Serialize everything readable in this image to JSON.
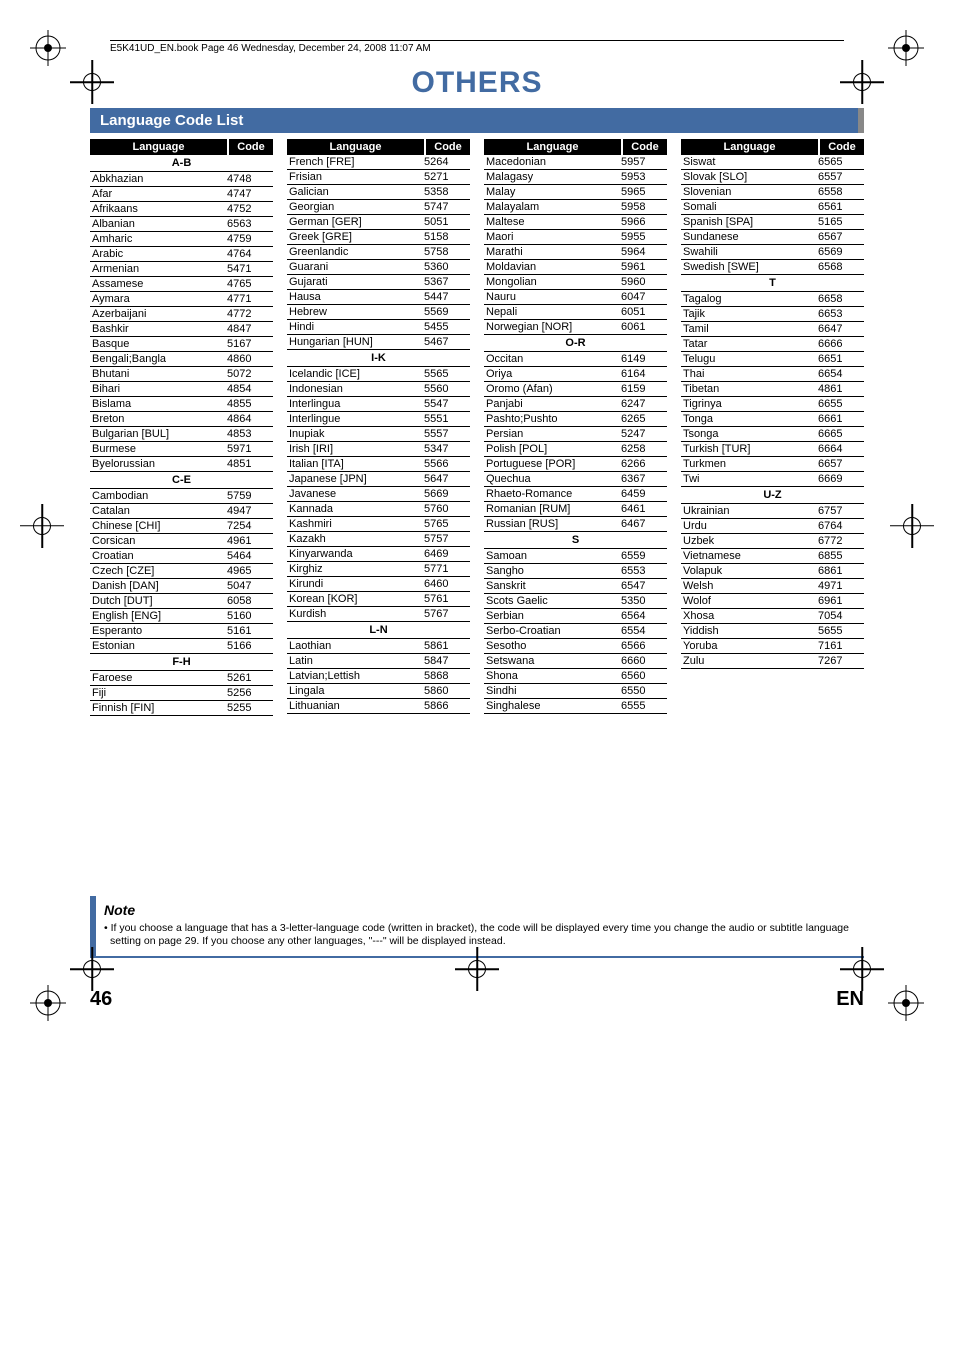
{
  "headerLine": "E5K41UD_EN.book  Page 46  Wednesday, December 24, 2008  11:07 AM",
  "title": "OTHERS",
  "sectionTitle": "Language Code List",
  "theadLang": "Language",
  "theadCode": "Code",
  "columns": [
    [
      {
        "type": "sect",
        "label": "A-B"
      },
      {
        "type": "row",
        "lang": "Abkhazian",
        "code": "4748"
      },
      {
        "type": "row",
        "lang": "Afar",
        "code": "4747"
      },
      {
        "type": "row",
        "lang": "Afrikaans",
        "code": "4752"
      },
      {
        "type": "row",
        "lang": "Albanian",
        "code": "6563"
      },
      {
        "type": "row",
        "lang": "Amharic",
        "code": "4759"
      },
      {
        "type": "row",
        "lang": "Arabic",
        "code": "4764"
      },
      {
        "type": "row",
        "lang": "Armenian",
        "code": "5471"
      },
      {
        "type": "row",
        "lang": "Assamese",
        "code": "4765"
      },
      {
        "type": "row",
        "lang": "Aymara",
        "code": "4771"
      },
      {
        "type": "row",
        "lang": "Azerbaijani",
        "code": "4772"
      },
      {
        "type": "row",
        "lang": "Bashkir",
        "code": "4847"
      },
      {
        "type": "row",
        "lang": "Basque",
        "code": "5167"
      },
      {
        "type": "row",
        "lang": "Bengali;Bangla",
        "code": "4860"
      },
      {
        "type": "row",
        "lang": "Bhutani",
        "code": "5072"
      },
      {
        "type": "row",
        "lang": "Bihari",
        "code": "4854"
      },
      {
        "type": "row",
        "lang": "Bislama",
        "code": "4855"
      },
      {
        "type": "row",
        "lang": "Breton",
        "code": "4864"
      },
      {
        "type": "row",
        "lang": "Bulgarian [BUL]",
        "code": "4853"
      },
      {
        "type": "row",
        "lang": "Burmese",
        "code": "5971"
      },
      {
        "type": "row",
        "lang": "Byelorussian",
        "code": "4851"
      },
      {
        "type": "sect",
        "label": "C-E"
      },
      {
        "type": "row",
        "lang": "Cambodian",
        "code": "5759"
      },
      {
        "type": "row",
        "lang": "Catalan",
        "code": "4947"
      },
      {
        "type": "row",
        "lang": "Chinese [CHI]",
        "code": "7254"
      },
      {
        "type": "row",
        "lang": "Corsican",
        "code": "4961"
      },
      {
        "type": "row",
        "lang": "Croatian",
        "code": "5464"
      },
      {
        "type": "row",
        "lang": "Czech [CZE]",
        "code": "4965"
      },
      {
        "type": "row",
        "lang": "Danish [DAN]",
        "code": "5047"
      },
      {
        "type": "row",
        "lang": "Dutch [DUT]",
        "code": "6058"
      },
      {
        "type": "row",
        "lang": "English [ENG]",
        "code": "5160"
      },
      {
        "type": "row",
        "lang": "Esperanto",
        "code": "5161"
      },
      {
        "type": "row",
        "lang": "Estonian",
        "code": "5166"
      },
      {
        "type": "sect",
        "label": "F-H"
      },
      {
        "type": "row",
        "lang": "Faroese",
        "code": "5261"
      },
      {
        "type": "row",
        "lang": "Fiji",
        "code": "5256"
      },
      {
        "type": "row",
        "lang": "Finnish [FIN]",
        "code": "5255"
      }
    ],
    [
      {
        "type": "row",
        "lang": "French [FRE]",
        "code": "5264"
      },
      {
        "type": "row",
        "lang": "Frisian",
        "code": "5271"
      },
      {
        "type": "row",
        "lang": "Galician",
        "code": "5358"
      },
      {
        "type": "row",
        "lang": "Georgian",
        "code": "5747"
      },
      {
        "type": "row",
        "lang": "German [GER]",
        "code": "5051"
      },
      {
        "type": "row",
        "lang": "Greek [GRE]",
        "code": "5158"
      },
      {
        "type": "row",
        "lang": "Greenlandic",
        "code": "5758"
      },
      {
        "type": "row",
        "lang": "Guarani",
        "code": "5360"
      },
      {
        "type": "row",
        "lang": "Gujarati",
        "code": "5367"
      },
      {
        "type": "row",
        "lang": "Hausa",
        "code": "5447"
      },
      {
        "type": "row",
        "lang": "Hebrew",
        "code": "5569"
      },
      {
        "type": "row",
        "lang": "Hindi",
        "code": "5455"
      },
      {
        "type": "row",
        "lang": "Hungarian [HUN]",
        "code": "5467"
      },
      {
        "type": "sect",
        "label": "I-K"
      },
      {
        "type": "row",
        "lang": "Icelandic [ICE]",
        "code": "5565"
      },
      {
        "type": "row",
        "lang": "Indonesian",
        "code": "5560"
      },
      {
        "type": "row",
        "lang": "Interlingua",
        "code": "5547"
      },
      {
        "type": "row",
        "lang": "Interlingue",
        "code": "5551"
      },
      {
        "type": "row",
        "lang": "Inupiak",
        "code": "5557"
      },
      {
        "type": "row",
        "lang": "Irish [IRI]",
        "code": "5347"
      },
      {
        "type": "row",
        "lang": "Italian [ITA]",
        "code": "5566"
      },
      {
        "type": "row",
        "lang": "Japanese [JPN]",
        "code": "5647"
      },
      {
        "type": "row",
        "lang": "Javanese",
        "code": "5669"
      },
      {
        "type": "row",
        "lang": "Kannada",
        "code": "5760"
      },
      {
        "type": "row",
        "lang": "Kashmiri",
        "code": "5765"
      },
      {
        "type": "row",
        "lang": "Kazakh",
        "code": "5757"
      },
      {
        "type": "row",
        "lang": "Kinyarwanda",
        "code": "6469"
      },
      {
        "type": "row",
        "lang": "Kirghiz",
        "code": "5771"
      },
      {
        "type": "row",
        "lang": "Kirundi",
        "code": "6460"
      },
      {
        "type": "row",
        "lang": "Korean [KOR]",
        "code": "5761"
      },
      {
        "type": "row",
        "lang": "Kurdish",
        "code": "5767"
      },
      {
        "type": "sect",
        "label": "L-N"
      },
      {
        "type": "row",
        "lang": "Laothian",
        "code": "5861"
      },
      {
        "type": "row",
        "lang": "Latin",
        "code": "5847"
      },
      {
        "type": "row",
        "lang": "Latvian;Lettish",
        "code": "5868"
      },
      {
        "type": "row",
        "lang": "Lingala",
        "code": "5860"
      },
      {
        "type": "row",
        "lang": "Lithuanian",
        "code": "5866"
      }
    ],
    [
      {
        "type": "row",
        "lang": "Macedonian",
        "code": "5957"
      },
      {
        "type": "row",
        "lang": "Malagasy",
        "code": "5953"
      },
      {
        "type": "row",
        "lang": "Malay",
        "code": "5965"
      },
      {
        "type": "row",
        "lang": "Malayalam",
        "code": "5958"
      },
      {
        "type": "row",
        "lang": "Maltese",
        "code": "5966"
      },
      {
        "type": "row",
        "lang": "Maori",
        "code": "5955"
      },
      {
        "type": "row",
        "lang": "Marathi",
        "code": "5964"
      },
      {
        "type": "row",
        "lang": "Moldavian",
        "code": "5961"
      },
      {
        "type": "row",
        "lang": "Mongolian",
        "code": "5960"
      },
      {
        "type": "row",
        "lang": "Nauru",
        "code": "6047"
      },
      {
        "type": "row",
        "lang": "Nepali",
        "code": "6051"
      },
      {
        "type": "row",
        "lang": "Norwegian [NOR]",
        "code": "6061"
      },
      {
        "type": "sect",
        "label": "O-R"
      },
      {
        "type": "row",
        "lang": "Occitan",
        "code": "6149"
      },
      {
        "type": "row",
        "lang": "Oriya",
        "code": "6164"
      },
      {
        "type": "row",
        "lang": "Oromo (Afan)",
        "code": "6159"
      },
      {
        "type": "row",
        "lang": "Panjabi",
        "code": "6247"
      },
      {
        "type": "row",
        "lang": "Pashto;Pushto",
        "code": "6265"
      },
      {
        "type": "row",
        "lang": "Persian",
        "code": "5247"
      },
      {
        "type": "row",
        "lang": "Polish [POL]",
        "code": "6258"
      },
      {
        "type": "row",
        "lang": "Portuguese [POR]",
        "code": "6266"
      },
      {
        "type": "row",
        "lang": "Quechua",
        "code": "6367"
      },
      {
        "type": "row",
        "lang": "Rhaeto-Romance",
        "code": "6459"
      },
      {
        "type": "row",
        "lang": "Romanian [RUM]",
        "code": "6461"
      },
      {
        "type": "row",
        "lang": "Russian [RUS]",
        "code": "6467"
      },
      {
        "type": "sect",
        "label": "S"
      },
      {
        "type": "row",
        "lang": "Samoan",
        "code": "6559"
      },
      {
        "type": "row",
        "lang": "Sangho",
        "code": "6553"
      },
      {
        "type": "row",
        "lang": "Sanskrit",
        "code": "6547"
      },
      {
        "type": "row",
        "lang": "Scots Gaelic",
        "code": "5350"
      },
      {
        "type": "row",
        "lang": "Serbian",
        "code": "6564"
      },
      {
        "type": "row",
        "lang": "Serbo-Croatian",
        "code": "6554"
      },
      {
        "type": "row",
        "lang": "Sesotho",
        "code": "6566"
      },
      {
        "type": "row",
        "lang": "Setswana",
        "code": "6660"
      },
      {
        "type": "row",
        "lang": "Shona",
        "code": "6560"
      },
      {
        "type": "row",
        "lang": "Sindhi",
        "code": "6550"
      },
      {
        "type": "row",
        "lang": "Singhalese",
        "code": "6555"
      }
    ],
    [
      {
        "type": "row",
        "lang": "Siswat",
        "code": "6565"
      },
      {
        "type": "row",
        "lang": "Slovak [SLO]",
        "code": "6557"
      },
      {
        "type": "row",
        "lang": "Slovenian",
        "code": "6558"
      },
      {
        "type": "row",
        "lang": "Somali",
        "code": "6561"
      },
      {
        "type": "row",
        "lang": "Spanish [SPA]",
        "code": "5165"
      },
      {
        "type": "row",
        "lang": "Sundanese",
        "code": "6567"
      },
      {
        "type": "row",
        "lang": "Swahili",
        "code": "6569"
      },
      {
        "type": "row",
        "lang": "Swedish [SWE]",
        "code": "6568"
      },
      {
        "type": "sect",
        "label": "T"
      },
      {
        "type": "row",
        "lang": "Tagalog",
        "code": "6658"
      },
      {
        "type": "row",
        "lang": "Tajik",
        "code": "6653"
      },
      {
        "type": "row",
        "lang": "Tamil",
        "code": "6647"
      },
      {
        "type": "row",
        "lang": "Tatar",
        "code": "6666"
      },
      {
        "type": "row",
        "lang": "Telugu",
        "code": "6651"
      },
      {
        "type": "row",
        "lang": "Thai",
        "code": "6654"
      },
      {
        "type": "row",
        "lang": "Tibetan",
        "code": "4861"
      },
      {
        "type": "row",
        "lang": "Tigrinya",
        "code": "6655"
      },
      {
        "type": "row",
        "lang": "Tonga",
        "code": "6661"
      },
      {
        "type": "row",
        "lang": "Tsonga",
        "code": "6665"
      },
      {
        "type": "row",
        "lang": "Turkish [TUR]",
        "code": "6664"
      },
      {
        "type": "row",
        "lang": "Turkmen",
        "code": "6657"
      },
      {
        "type": "row",
        "lang": "Twi",
        "code": "6669"
      },
      {
        "type": "sect",
        "label": "U-Z"
      },
      {
        "type": "row",
        "lang": "Ukrainian",
        "code": "6757"
      },
      {
        "type": "row",
        "lang": "Urdu",
        "code": "6764"
      },
      {
        "type": "row",
        "lang": "Uzbek",
        "code": "6772"
      },
      {
        "type": "row",
        "lang": "Vietnamese",
        "code": "6855"
      },
      {
        "type": "row",
        "lang": "Volapuk",
        "code": "6861"
      },
      {
        "type": "row",
        "lang": "Welsh",
        "code": "4971"
      },
      {
        "type": "row",
        "lang": "Wolof",
        "code": "6961"
      },
      {
        "type": "row",
        "lang": "Xhosa",
        "code": "7054"
      },
      {
        "type": "row",
        "lang": "Yiddish",
        "code": "5655"
      },
      {
        "type": "row",
        "lang": "Yoruba",
        "code": "7161"
      },
      {
        "type": "row",
        "lang": "Zulu",
        "code": "7267"
      }
    ]
  ],
  "noteTitle": "Note",
  "noteText": "• If you choose a language that has a 3-letter-language code (written in bracket), the code will be displayed every time you change the audio or subtitle language setting on page 29. If you choose any other languages, \"---\" will be displayed instead.",
  "pageNum": "46",
  "langCode": "EN"
}
